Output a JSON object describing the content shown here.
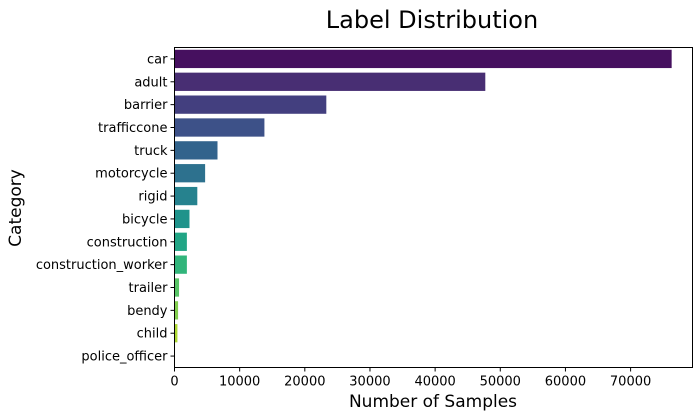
{
  "chart_data": {
    "type": "bar",
    "orientation": "horizontal",
    "title": "Label Distribution",
    "xlabel": "Number of Samples",
    "ylabel": "Category",
    "categories": [
      "car",
      "adult",
      "barrier",
      "trafficcone",
      "truck",
      "motorcycle",
      "rigid",
      "bicycle",
      "construction",
      "construction_worker",
      "trailer",
      "bendy",
      "child",
      "police_officer"
    ],
    "values": [
      76300,
      47700,
      23300,
      13800,
      6600,
      4700,
      3500,
      2300,
      1900,
      1900,
      700,
      550,
      450,
      80
    ],
    "xlim": [
      0,
      79500
    ],
    "xticks": [
      0,
      10000,
      20000,
      30000,
      40000,
      50000,
      60000,
      70000
    ],
    "xtick_labels": [
      "0",
      "10000",
      "20000",
      "30000",
      "40000",
      "50000",
      "60000",
      "70000"
    ],
    "colors": [
      "#46105f",
      "#482e73",
      "#433f7f",
      "#3d5188",
      "#32638c",
      "#2d718e",
      "#26828e",
      "#1f938b",
      "#21a585",
      "#31b57b",
      "#58c466",
      "#82ce4e",
      "#acd731",
      "#d8e01c"
    ],
    "grid": false,
    "legend": "none"
  }
}
